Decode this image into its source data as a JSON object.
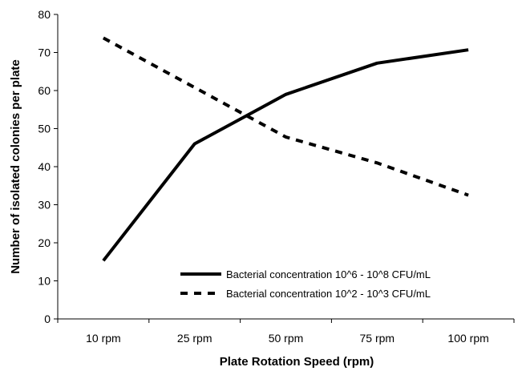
{
  "chart_data": {
    "type": "line",
    "title": "",
    "xlabel": "Plate Rotation Speed (rpm)",
    "ylabel": "Number of isolated colonies per plate",
    "categories": [
      "10 rpm",
      "25 rpm",
      "50 rpm",
      "75 rpm",
      "100 rpm"
    ],
    "ylim": [
      0,
      80
    ],
    "yticks": [
      0,
      10,
      20,
      30,
      40,
      50,
      60,
      70,
      80
    ],
    "grid": false,
    "legend_position": "bottom-right",
    "series": [
      {
        "name": "Bacterial concentration 10^6 - 10^8 CFU/mL",
        "style": "solid",
        "color": "#000000",
        "values": [
          15.3,
          46,
          59,
          67.2,
          70.7
        ]
      },
      {
        "name": "Bacterial concentration 10^2 - 10^3 CFU/mL",
        "style": "dashed",
        "color": "#000000",
        "values": [
          73.8,
          60.8,
          47.8,
          41,
          32.5
        ]
      }
    ]
  }
}
